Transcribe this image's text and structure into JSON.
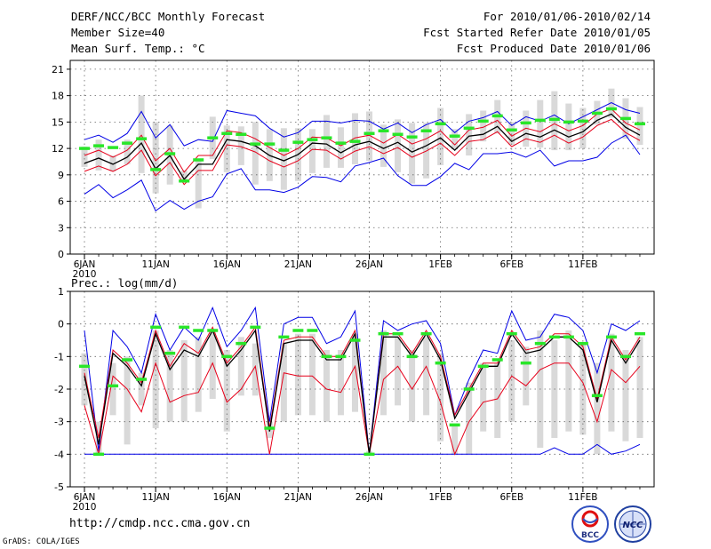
{
  "header": {
    "title": "DERF/NCC/BCC Monthly Forecast",
    "member_size": "Member Size=40",
    "variable1": "Mean Surf. Temp.: °C",
    "forecast_period": "For 2010/01/06-2010/02/14",
    "started_refer": "Fcst Started Refer Date 2010/01/05",
    "produced": "Fcst Produced Date 2010/01/06"
  },
  "footer": {
    "url": "http://cmdp.ncc.cma.gov.cn",
    "credit": "GrADS: COLA/IGES"
  },
  "logos": {
    "bcc": "BCC",
    "ncc": "NCC"
  },
  "colors": {
    "envelope": "#0000e6",
    "spread": "#e6001a",
    "mean": "#000000",
    "box": "#d9d9d9",
    "dash": "#29e629",
    "grid": "#666666"
  },
  "chart_data": [
    {
      "type": "line",
      "title": "Mean Surf. Temp.: °C",
      "ylim": [
        0,
        22
      ],
      "yticks": [
        0,
        3,
        6,
        9,
        12,
        15,
        18,
        21
      ],
      "xticks": [
        {
          "day": 1,
          "label": "6JAN",
          "label2": "2010"
        },
        {
          "day": 6,
          "label": "11JAN"
        },
        {
          "day": 11,
          "label": "16JAN"
        },
        {
          "day": 16,
          "label": "21JAN"
        },
        {
          "day": 21,
          "label": "26JAN"
        },
        {
          "day": 26,
          "label": "1FEB"
        },
        {
          "day": 31,
          "label": "6FEB"
        },
        {
          "day": 36,
          "label": "11FEB"
        }
      ],
      "days": [
        1,
        2,
        3,
        4,
        5,
        6,
        7,
        8,
        9,
        10,
        11,
        12,
        13,
        14,
        15,
        16,
        17,
        18,
        19,
        20,
        21,
        22,
        23,
        24,
        25,
        26,
        27,
        28,
        29,
        30,
        31,
        32,
        33,
        34,
        35,
        36,
        37,
        38,
        39,
        40
      ],
      "series": [
        {
          "name": "max",
          "color": "blue",
          "values": [
            13.0,
            13.5,
            12.7,
            13.7,
            16.2,
            13.2,
            14.7,
            12.3,
            13.0,
            12.8,
            16.3,
            16.0,
            15.7,
            14.3,
            13.3,
            13.8,
            15.1,
            15.1,
            14.9,
            15.2,
            15.1,
            14.2,
            14.9,
            13.8,
            14.7,
            15.3,
            13.8,
            15.1,
            15.5,
            16.2,
            14.6,
            15.6,
            15.1,
            15.8,
            14.8,
            15.6,
            16.4,
            17.2,
            16.4,
            16.0
          ]
        },
        {
          "name": "p90",
          "color": "red",
          "values": [
            11.2,
            11.8,
            11.0,
            11.8,
            13.5,
            10.6,
            12.0,
            9.3,
            11.2,
            11.2,
            14.0,
            13.8,
            13.1,
            12.1,
            11.2,
            12.0,
            13.3,
            13.2,
            12.3,
            13.2,
            13.5,
            12.6,
            13.6,
            12.5,
            13.1,
            14.0,
            12.4,
            14.1,
            14.4,
            15.2,
            13.4,
            14.3,
            13.9,
            14.8,
            14.0,
            14.6,
            15.9,
            16.5,
            14.9,
            14.1
          ]
        },
        {
          "name": "mean",
          "color": "black",
          "values": [
            10.3,
            10.9,
            10.2,
            11.0,
            12.6,
            9.7,
            11.2,
            8.5,
            10.2,
            10.2,
            13.0,
            12.8,
            12.3,
            11.2,
            10.6,
            11.3,
            12.6,
            12.5,
            11.5,
            12.4,
            12.8,
            12.0,
            12.7,
            11.6,
            12.3,
            13.2,
            11.8,
            13.4,
            13.6,
            14.5,
            12.8,
            13.7,
            13.3,
            14.1,
            13.3,
            13.9,
            15.2,
            15.9,
            14.4,
            13.5
          ]
        },
        {
          "name": "p10",
          "color": "red",
          "values": [
            9.4,
            10.0,
            9.4,
            10.2,
            11.8,
            8.9,
            10.4,
            7.9,
            9.5,
            9.5,
            12.4,
            12.2,
            11.6,
            10.6,
            9.9,
            10.6,
            11.9,
            11.8,
            10.8,
            11.7,
            12.2,
            11.4,
            12.1,
            11.0,
            11.7,
            12.6,
            11.2,
            12.8,
            13.0,
            13.9,
            12.2,
            13.1,
            12.7,
            13.5,
            12.6,
            13.3,
            14.6,
            15.3,
            13.8,
            12.9
          ]
        },
        {
          "name": "min",
          "color": "blue",
          "values": [
            6.8,
            7.9,
            6.4,
            7.3,
            8.4,
            4.9,
            6.1,
            5.1,
            6.0,
            6.5,
            9.1,
            9.7,
            7.3,
            7.3,
            7.0,
            7.6,
            8.8,
            8.7,
            8.2,
            10.0,
            10.4,
            10.9,
            8.9,
            7.8,
            7.8,
            8.8,
            10.3,
            9.6,
            11.4,
            11.4,
            11.6,
            11.0,
            11.8,
            10.0,
            10.6,
            10.6,
            11.0,
            12.6,
            13.5,
            11.3
          ]
        },
        {
          "name": "observed",
          "color": "green",
          "values": [
            12.0,
            12.3,
            12.1,
            12.6,
            13.1,
            9.6,
            11.4,
            8.3,
            10.7,
            13.2,
            13.7,
            13.6,
            12.5,
            12.5,
            11.8,
            12.7,
            13.0,
            13.2,
            12.6,
            12.8,
            13.7,
            14.0,
            13.6,
            13.3,
            14.0,
            14.8,
            13.4,
            14.3,
            15.1,
            15.7,
            14.1,
            14.9,
            15.2,
            15.3,
            15.0,
            15.1,
            16.0,
            16.5,
            15.4,
            14.8
          ]
        }
      ],
      "boxes": [
        [
          9.9,
          12.2
        ],
        [
          9.5,
          13.0
        ],
        [
          9.4,
          11.2
        ],
        [
          10.2,
          13.0
        ],
        [
          9.2,
          18.0
        ],
        [
          6.9,
          15.0
        ],
        [
          7.9,
          14.6
        ],
        [
          8.3,
          9.5
        ],
        [
          5.2,
          10.8
        ],
        [
          10.8,
          15.6
        ],
        [
          9.3,
          14.6
        ],
        [
          10.1,
          14.5
        ],
        [
          7.9,
          15.0
        ],
        [
          8.3,
          14.2
        ],
        [
          7.3,
          14.3
        ],
        [
          8.3,
          14.3
        ],
        [
          9.2,
          14.2
        ],
        [
          9.8,
          15.8
        ],
        [
          9.8,
          14.4
        ],
        [
          10.2,
          16.0
        ],
        [
          10.6,
          16.2
        ],
        [
          9.9,
          14.7
        ],
        [
          9.3,
          15.3
        ],
        [
          8.0,
          14.9
        ],
        [
          8.6,
          14.9
        ],
        [
          10.1,
          16.6
        ],
        [
          11.9,
          14.2
        ],
        [
          11.2,
          15.9
        ],
        [
          12.8,
          16.3
        ],
        [
          13.7,
          17.5
        ],
        [
          12.4,
          15.0
        ],
        [
          12.2,
          16.3
        ],
        [
          12.1,
          17.5
        ],
        [
          11.8,
          18.5
        ],
        [
          11.8,
          17.1
        ],
        [
          12.0,
          16.6
        ],
        [
          14.7,
          17.4
        ],
        [
          15.5,
          18.8
        ],
        [
          13.1,
          17.7
        ],
        [
          12.4,
          16.7
        ]
      ]
    },
    {
      "type": "line",
      "title": "Prec.: log(mm/d)",
      "ylim": [
        -5,
        1
      ],
      "yticks": [
        -5,
        -4,
        -3,
        -2,
        -1,
        0,
        1
      ],
      "xticks": [
        {
          "day": 1,
          "label": "6JAN",
          "label2": "2010"
        },
        {
          "day": 6,
          "label": "11JAN"
        },
        {
          "day": 11,
          "label": "16JAN"
        },
        {
          "day": 16,
          "label": "21JAN"
        },
        {
          "day": 21,
          "label": "26JAN"
        },
        {
          "day": 26,
          "label": "1FEB"
        },
        {
          "day": 31,
          "label": "6FEB"
        },
        {
          "day": 36,
          "label": "11FEB"
        }
      ],
      "days": [
        1,
        2,
        3,
        4,
        5,
        6,
        7,
        8,
        9,
        10,
        11,
        12,
        13,
        14,
        15,
        16,
        17,
        18,
        19,
        20,
        21,
        22,
        23,
        24,
        25,
        26,
        27,
        28,
        29,
        30,
        31,
        32,
        33,
        34,
        35,
        36,
        37,
        38,
        39,
        40
      ],
      "series": [
        {
          "name": "max",
          "color": "blue",
          "values": [
            -0.2,
            -3.9,
            -0.2,
            -0.7,
            -1.5,
            0.3,
            -0.8,
            -0.1,
            -0.5,
            0.5,
            -0.7,
            -0.2,
            0.5,
            -3.0,
            -0.0,
            0.2,
            0.2,
            -0.6,
            -0.4,
            0.4,
            -4.0,
            0.1,
            -0.2,
            -0.0,
            0.1,
            -0.6,
            -2.8,
            -1.7,
            -0.8,
            -0.9,
            0.4,
            -0.5,
            -0.4,
            0.3,
            0.2,
            -0.2,
            -1.5,
            0.0,
            -0.2,
            0.1
          ]
        },
        {
          "name": "p90",
          "color": "red",
          "values": [
            -1.5,
            -3.5,
            -0.8,
            -1.2,
            -1.8,
            -0.2,
            -1.3,
            -0.6,
            -0.9,
            -0.1,
            -1.2,
            -0.7,
            -0.1,
            -3.2,
            -0.5,
            -0.4,
            -0.4,
            -1.0,
            -1.0,
            -0.2,
            -4.0,
            -0.3,
            -0.3,
            -0.9,
            -0.2,
            -1.0,
            -2.8,
            -2.0,
            -1.2,
            -1.2,
            -0.2,
            -0.8,
            -0.7,
            -0.3,
            -0.3,
            -0.7,
            -2.3,
            -0.4,
            -1.1,
            -0.4
          ]
        },
        {
          "name": "mean",
          "color": "black",
          "values": [
            -1.6,
            -3.7,
            -0.9,
            -1.3,
            -1.9,
            -0.3,
            -1.4,
            -0.8,
            -1.0,
            -0.2,
            -1.3,
            -0.8,
            -0.2,
            -3.3,
            -0.6,
            -0.5,
            -0.5,
            -1.1,
            -1.1,
            -0.3,
            -4.0,
            -0.4,
            -0.4,
            -1.0,
            -0.3,
            -1.1,
            -2.9,
            -2.1,
            -1.3,
            -1.3,
            -0.3,
            -0.9,
            -0.8,
            -0.4,
            -0.4,
            -0.8,
            -2.4,
            -0.5,
            -1.2,
            -0.5
          ]
        },
        {
          "name": "p10",
          "color": "red",
          "values": [
            -2.5,
            -4.0,
            -1.6,
            -2.0,
            -2.7,
            -1.2,
            -2.4,
            -2.2,
            -2.1,
            -1.2,
            -2.4,
            -2.0,
            -1.3,
            -4.0,
            -1.5,
            -1.6,
            -1.6,
            -2.0,
            -2.1,
            -1.3,
            -4.0,
            -1.7,
            -1.3,
            -2.0,
            -1.3,
            -2.4,
            -4.0,
            -3.0,
            -2.4,
            -2.3,
            -1.6,
            -1.9,
            -1.4,
            -1.2,
            -1.2,
            -1.8,
            -3.0,
            -1.4,
            -1.8,
            -1.3
          ]
        },
        {
          "name": "min",
          "color": "blue",
          "values": [
            -4.0,
            -4.0,
            -4.0,
            -4.0,
            -4.0,
            -4.0,
            -4.0,
            -4.0,
            -4.0,
            -4.0,
            -4.0,
            -4.0,
            -4.0,
            -4.0,
            -4.0,
            -4.0,
            -4.0,
            -4.0,
            -4.0,
            -4.0,
            -4.0,
            -4.0,
            -4.0,
            -4.0,
            -4.0,
            -4.0,
            -4.0,
            -4.0,
            -4.0,
            -4.0,
            -4.0,
            -4.0,
            -4.0,
            -3.8,
            -4.0,
            -4.0,
            -3.7,
            -4.0,
            -3.9,
            -3.7
          ]
        },
        {
          "name": "observed",
          "color": "green",
          "values": [
            -1.3,
            -4.0,
            -1.9,
            -1.1,
            -1.7,
            -0.1,
            -0.9,
            -0.1,
            -0.2,
            -0.2,
            -1.0,
            -0.6,
            -0.1,
            -3.2,
            -0.4,
            -0.2,
            -0.2,
            -1.0,
            -1.0,
            -0.5,
            -4.0,
            -0.3,
            -0.3,
            -1.0,
            -0.3,
            -1.2,
            -3.1,
            -2.0,
            -1.3,
            -1.1,
            -0.3,
            -1.2,
            -0.6,
            -0.4,
            -0.4,
            -0.6,
            -2.2,
            -0.4,
            -1.0,
            -0.3
          ]
        }
      ],
      "boxes": [
        [
          -2.5,
          -0.9
        ],
        [
          -4.0,
          -3.0
        ],
        [
          -2.8,
          -1.2
        ],
        [
          -3.7,
          -1.0
        ],
        [
          -2.5,
          -1.5
        ],
        [
          -3.2,
          -0.2
        ],
        [
          -3.0,
          -0.8
        ],
        [
          -3.0,
          -0.5
        ],
        [
          -2.7,
          -0.4
        ],
        [
          -2.3,
          -0.2
        ],
        [
          -3.3,
          -0.8
        ],
        [
          -2.2,
          -0.4
        ],
        [
          -2.2,
          -0.6
        ],
        [
          -3.5,
          -3.0
        ],
        [
          -3.0,
          -0.6
        ],
        [
          -2.8,
          -0.3
        ],
        [
          -2.8,
          -0.3
        ],
        [
          -3.0,
          -0.8
        ],
        [
          -2.8,
          -0.8
        ],
        [
          -2.7,
          -0.3
        ],
        [
          -4.0,
          -3.9
        ],
        [
          -2.8,
          -0.2
        ],
        [
          -2.5,
          -0.4
        ],
        [
          -3.0,
          -0.8
        ],
        [
          -2.8,
          -0.4
        ],
        [
          -3.6,
          -0.9
        ],
        [
          -4.0,
          -3.1
        ],
        [
          -4.0,
          -1.8
        ],
        [
          -3.3,
          -1.2
        ],
        [
          -3.5,
          -1.2
        ],
        [
          -3.0,
          -0.5
        ],
        [
          -2.5,
          -0.7
        ],
        [
          -3.8,
          -0.2
        ],
        [
          -3.5,
          -0.5
        ],
        [
          -3.3,
          -0.2
        ],
        [
          -3.4,
          -0.6
        ],
        [
          -4.0,
          -1.2
        ],
        [
          -3.3,
          -0.3
        ],
        [
          -3.6,
          -0.8
        ],
        [
          -3.5,
          -0.4
        ]
      ]
    }
  ]
}
